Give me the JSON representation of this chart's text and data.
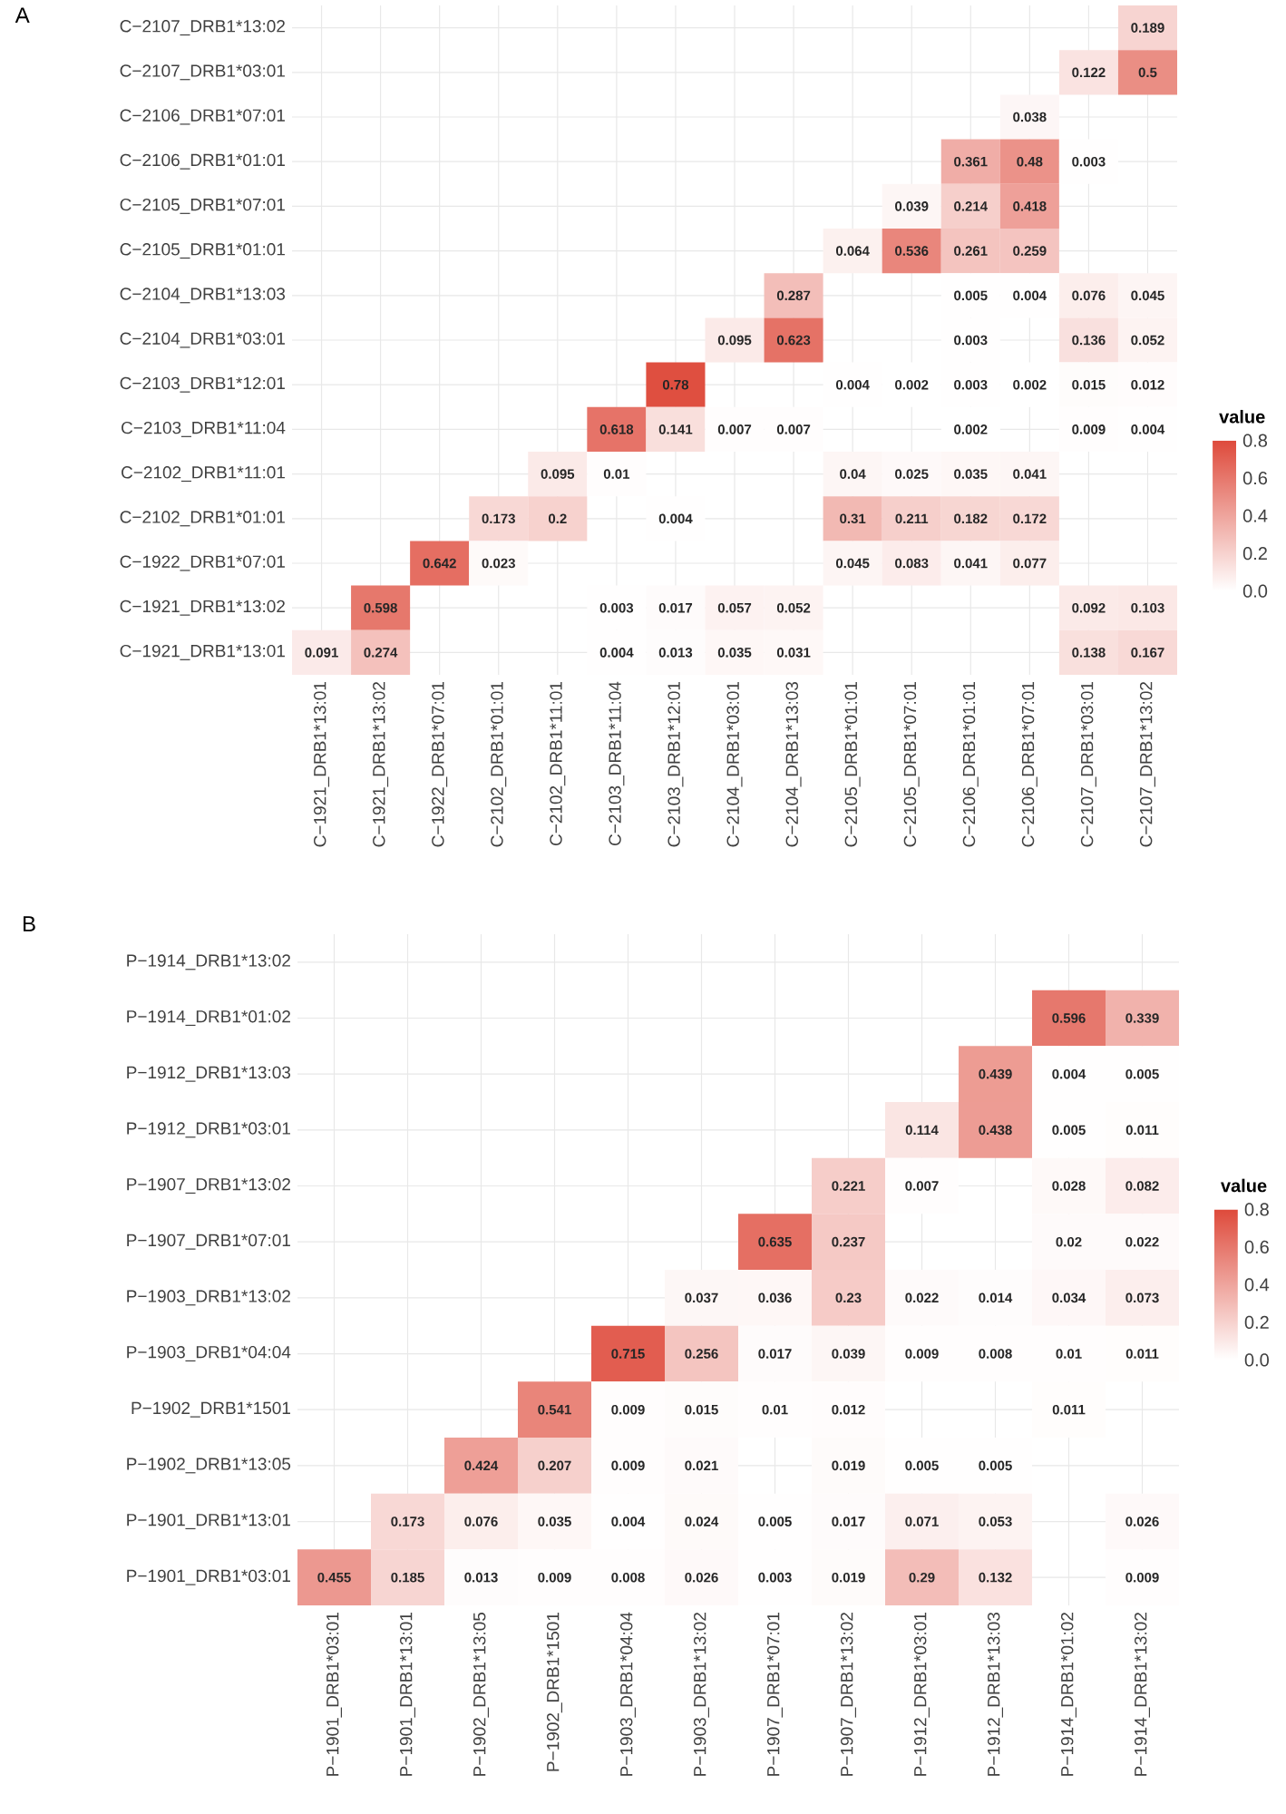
{
  "chart_data": [
    {
      "type": "heatmap",
      "title": "A",
      "clabel": "value",
      "clim": [
        0,
        0.8
      ],
      "cticks": [
        {
          "value": 0,
          "label": "0.0"
        },
        {
          "value": 0.2,
          "label": "0.2"
        },
        {
          "value": 0.4,
          "label": "0.4"
        },
        {
          "value": 0.6,
          "label": "0.6"
        },
        {
          "value": 0.8,
          "label": "0.8"
        }
      ],
      "data_labels": true,
      "grid": true,
      "categories": [
        "C−1921_DRB1*13:01",
        "C−1921_DRB1*13:02",
        "C−1922_DRB1*07:01",
        "C−2102_DRB1*01:01",
        "C−2102_DRB1*11:01",
        "C−2103_DRB1*11:04",
        "C−2103_DRB1*12:01",
        "C−2104_DRB1*03:01",
        "C−2104_DRB1*13:03",
        "C−2105_DRB1*01:01",
        "C−2105_DRB1*07:01",
        "C−2106_DRB1*01:01",
        "C−2106_DRB1*07:01",
        "C−2107_DRB1*03:01",
        "C−2107_DRB1*13:02"
      ],
      "y_categories": [
        "C−2107_DRB1*13:02",
        "C−2107_DRB1*03:01",
        "C−2106_DRB1*07:01",
        "C−2106_DRB1*01:01",
        "C−2105_DRB1*07:01",
        "C−2105_DRB1*01:01",
        "C−2104_DRB1*13:03",
        "C−2104_DRB1*03:01",
        "C−2103_DRB1*12:01",
        "C−2103_DRB1*11:04",
        "C−2102_DRB1*11:01",
        "C−2102_DRB1*01:01",
        "C−1922_DRB1*07:01",
        "C−1921_DRB1*13:02",
        "C−1921_DRB1*13:01"
      ],
      "cells": [
        [
          null,
          null,
          null,
          null,
          null,
          null,
          null,
          null,
          null,
          null,
          null,
          null,
          null,
          null,
          0.189
        ],
        [
          null,
          null,
          null,
          null,
          null,
          null,
          null,
          null,
          null,
          null,
          null,
          null,
          null,
          0.122,
          0.5
        ],
        [
          null,
          null,
          null,
          null,
          null,
          null,
          null,
          null,
          null,
          null,
          null,
          null,
          0.038,
          null,
          null
        ],
        [
          null,
          null,
          null,
          null,
          null,
          null,
          null,
          null,
          null,
          null,
          null,
          0.361,
          0.48,
          0.003,
          null
        ],
        [
          null,
          null,
          null,
          null,
          null,
          null,
          null,
          null,
          null,
          null,
          0.039,
          0.214,
          0.418,
          null,
          null
        ],
        [
          null,
          null,
          null,
          null,
          null,
          null,
          null,
          null,
          null,
          0.064,
          0.536,
          0.261,
          0.259,
          null,
          null
        ],
        [
          null,
          null,
          null,
          null,
          null,
          null,
          null,
          null,
          0.287,
          null,
          null,
          0.005,
          0.004,
          0.076,
          0.045
        ],
        [
          null,
          null,
          null,
          null,
          null,
          null,
          null,
          0.095,
          0.623,
          null,
          null,
          0.003,
          null,
          0.136,
          0.052
        ],
        [
          null,
          null,
          null,
          null,
          null,
          null,
          0.78,
          null,
          null,
          0.004,
          0.002,
          0.003,
          0.002,
          0.015,
          0.012
        ],
        [
          null,
          null,
          null,
          null,
          null,
          0.618,
          0.141,
          0.007,
          0.007,
          null,
          null,
          0.002,
          null,
          0.009,
          0.004
        ],
        [
          null,
          null,
          null,
          null,
          0.095,
          0.01,
          null,
          null,
          null,
          0.04,
          0.025,
          0.035,
          0.041,
          null,
          null
        ],
        [
          null,
          null,
          null,
          0.173,
          0.2,
          null,
          0.004,
          null,
          null,
          0.31,
          0.211,
          0.182,
          0.172,
          null,
          null
        ],
        [
          null,
          null,
          0.642,
          0.023,
          null,
          null,
          null,
          null,
          null,
          0.045,
          0.083,
          0.041,
          0.077,
          null,
          null
        ],
        [
          null,
          0.598,
          null,
          null,
          null,
          0.003,
          0.017,
          0.057,
          0.052,
          null,
          null,
          null,
          null,
          0.092,
          0.103
        ],
        [
          0.091,
          0.274,
          null,
          null,
          null,
          0.004,
          0.013,
          0.035,
          0.031,
          null,
          null,
          null,
          null,
          0.138,
          0.167
        ]
      ]
    },
    {
      "type": "heatmap",
      "title": "B",
      "clabel": "value",
      "clim": [
        0,
        0.8
      ],
      "cticks": [
        {
          "value": 0,
          "label": "0.0"
        },
        {
          "value": 0.2,
          "label": "0.2"
        },
        {
          "value": 0.4,
          "label": "0.4"
        },
        {
          "value": 0.6,
          "label": "0.6"
        },
        {
          "value": 0.8,
          "label": "0.8"
        }
      ],
      "data_labels": true,
      "grid": true,
      "categories": [
        "P−1901_DRB1*03:01",
        "P−1901_DRB1*13:01",
        "P−1902_DRB1*13:05",
        "P−1902_DRB1*1501",
        "P−1903_DRB1*04:04",
        "P−1903_DRB1*13:02",
        "P−1907_DRB1*07:01",
        "P−1907_DRB1*13:02",
        "P−1912_DRB1*03:01",
        "P−1912_DRB1*13:03",
        "P−1914_DRB1*01:02",
        "P−1914_DRB1*13:02"
      ],
      "y_categories": [
        "P−1914_DRB1*13:02",
        "P−1914_DRB1*01:02",
        "P−1912_DRB1*13:03",
        "P−1912_DRB1*03:01",
        "P−1907_DRB1*13:02",
        "P−1907_DRB1*07:01",
        "P−1903_DRB1*13:02",
        "P−1903_DRB1*04:04",
        "P−1902_DRB1*1501",
        "P−1902_DRB1*13:05",
        "P−1901_DRB1*13:01",
        "P−1901_DRB1*03:01"
      ],
      "cells": [
        [
          null,
          null,
          null,
          null,
          null,
          null,
          null,
          null,
          null,
          null,
          null,
          null
        ],
        [
          null,
          null,
          null,
          null,
          null,
          null,
          null,
          null,
          null,
          null,
          0.596,
          0.339
        ],
        [
          null,
          null,
          null,
          null,
          null,
          null,
          null,
          null,
          null,
          0.439,
          0.004,
          0.005
        ],
        [
          null,
          null,
          null,
          null,
          null,
          null,
          null,
          null,
          0.114,
          0.438,
          0.005,
          0.011
        ],
        [
          null,
          null,
          null,
          null,
          null,
          null,
          null,
          0.221,
          0.007,
          null,
          0.028,
          0.082
        ],
        [
          null,
          null,
          null,
          null,
          null,
          null,
          0.635,
          0.237,
          null,
          null,
          0.02,
          0.022
        ],
        [
          null,
          null,
          null,
          null,
          null,
          0.037,
          0.036,
          0.23,
          0.022,
          0.014,
          0.034,
          0.073
        ],
        [
          null,
          null,
          null,
          null,
          0.715,
          0.256,
          0.017,
          0.039,
          0.009,
          0.008,
          0.01,
          0.011
        ],
        [
          null,
          null,
          null,
          0.541,
          0.009,
          0.015,
          0.01,
          0.012,
          null,
          null,
          0.011,
          null
        ],
        [
          null,
          null,
          0.424,
          0.207,
          0.009,
          0.021,
          null,
          0.019,
          0.005,
          0.005,
          null,
          null
        ],
        [
          null,
          0.173,
          0.076,
          0.035,
          0.004,
          0.024,
          0.005,
          0.017,
          0.071,
          0.053,
          null,
          0.026
        ],
        [
          0.455,
          0.185,
          0.013,
          0.009,
          0.008,
          0.026,
          0.003,
          0.019,
          0.29,
          0.132,
          null,
          0.009
        ]
      ]
    }
  ]
}
